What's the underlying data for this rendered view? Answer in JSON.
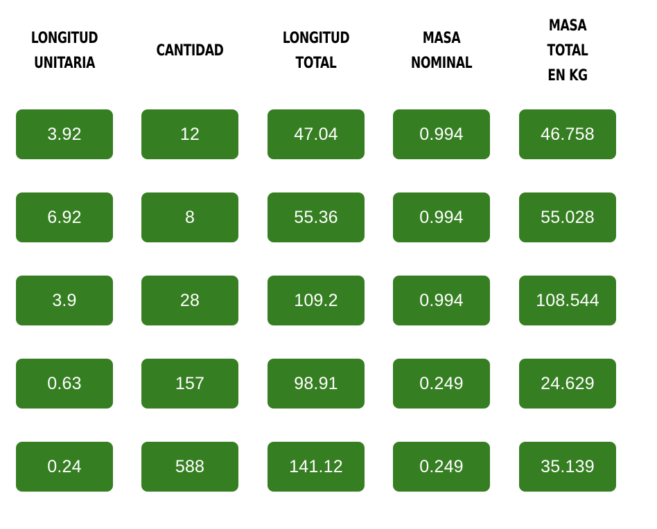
{
  "colors": {
    "cell_background": "#367e22",
    "cell_text": "#ffffff",
    "header_text": "#000000",
    "page_background": "#ffffff"
  },
  "table": {
    "headers": [
      "LONGITUD\nUNITARIA",
      "CANTIDAD",
      "LONGITUD\nTOTAL",
      "MASA\nNOMINAL",
      "MASA TOTAL\nEN KG"
    ],
    "rows": [
      [
        "3.92",
        "12",
        "47.04",
        "0.994",
        "46.758"
      ],
      [
        "6.92",
        "8",
        "55.36",
        "0.994",
        "55.028"
      ],
      [
        "3.9",
        "28",
        "109.2",
        "0.994",
        "108.544"
      ],
      [
        "0.63",
        "157",
        "98.91",
        "0.249",
        "24.629"
      ],
      [
        "0.24",
        "588",
        "141.12",
        "0.249",
        "35.139"
      ]
    ]
  }
}
